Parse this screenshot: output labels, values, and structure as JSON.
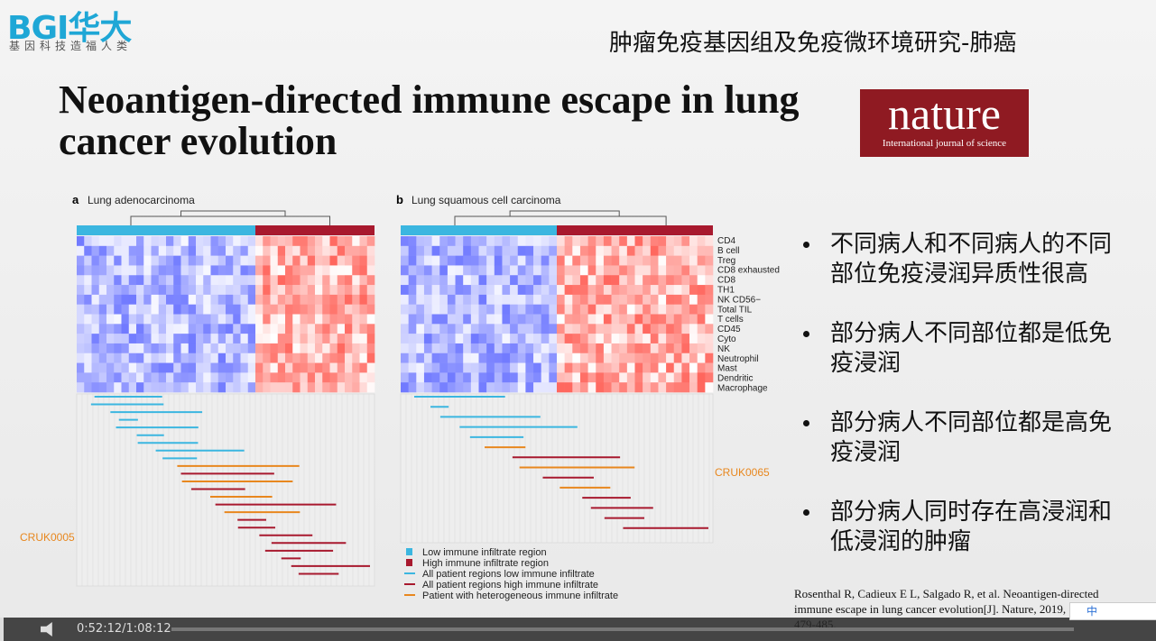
{
  "logo": {
    "brand": "BGI华大",
    "slogan": "基因科技造福人类"
  },
  "header": {
    "title": "肿瘤免疫基因组及免疫微环境研究-肺癌"
  },
  "slide": {
    "title": "Neoantigen-directed immune escape in lung cancer evolution",
    "journal": {
      "name": "nature",
      "tagline": "International journal of science"
    },
    "figure": {
      "panels": [
        {
          "letter": "a",
          "label": "Lung adenocarcinoma",
          "patient": "CRUK0005"
        },
        {
          "letter": "b",
          "label": "Lung squamous cell carcinoma",
          "patient": "CRUK0065"
        }
      ],
      "rows": [
        "CD4",
        "B cell",
        "Treg",
        "CD8 exhausted",
        "CD8",
        "TH1",
        "NK CD56−",
        "Total TIL",
        "T cells",
        "CD45",
        "Cyto",
        "NK",
        "Neutrophil",
        "Mast",
        "Dendritic",
        "Macrophage"
      ],
      "legend": [
        "Low immune infiltrate region",
        "High immune infiltrate region",
        "All patient regions low immune infiltrate",
        "All patient regions high immune infiltrate",
        "Patient with heterogeneous immune infiltrate"
      ]
    },
    "bullets": [
      "不同病人和不同病人的不同部位免疫浸润异质性很高",
      "部分病人不同部位都是低免疫浸润",
      "部分病人不同部位都是高免疫浸润",
      "部分病人同时存在高浸润和低浸润的肿瘤"
    ],
    "citation": "Rosenthal R, Cadieux E L, Salgado R, et al. Neoantigen-directed immune escape in lung cancer evolution[J]. Nature, 2019, 567(7749): 479-485."
  },
  "player": {
    "time": "0:52:12/1:08:12",
    "ime": "中"
  }
}
